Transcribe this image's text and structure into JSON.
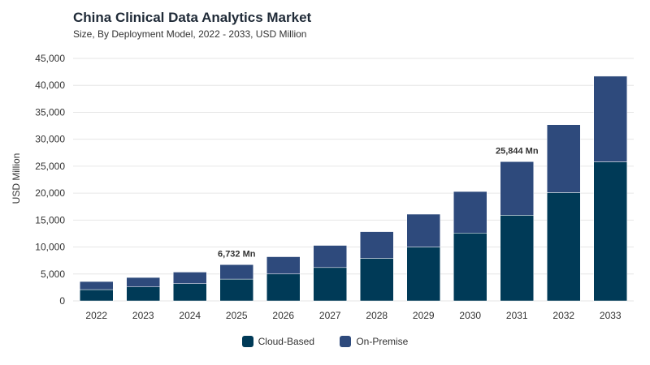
{
  "chart_data": {
    "type": "bar",
    "stacked": true,
    "title": "China Clinical Data Analytics Market",
    "subtitle": "Size, By Deployment Model, 2022 - 2033, USD Million",
    "ylabel": "USD Million",
    "xlabel": "",
    "ylim": [
      0,
      45000
    ],
    "yticks": [
      0,
      5000,
      10000,
      15000,
      20000,
      25000,
      30000,
      35000,
      40000,
      45000
    ],
    "ytick_labels": [
      "0",
      "5,000",
      "10,000",
      "15,000",
      "20,000",
      "25,000",
      "30,000",
      "35,000",
      "40,000",
      "45,000"
    ],
    "grid": true,
    "legend_position": "bottom-center",
    "categories": [
      "2022",
      "2023",
      "2024",
      "2025",
      "2026",
      "2027",
      "2028",
      "2029",
      "2030",
      "2031",
      "2032",
      "2033"
    ],
    "series": [
      {
        "name": "Cloud-Based",
        "color": "#003a57",
        "values": [
          2100,
          2600,
          3200,
          4050,
          5000,
          6200,
          7900,
          10000,
          12600,
          15900,
          20100,
          25800
        ]
      },
      {
        "name": "On-Premise",
        "color": "#2e4a7c",
        "values": [
          1500,
          1750,
          2150,
          2682,
          3200,
          4100,
          4950,
          6100,
          7700,
          9944,
          12600,
          15900
        ]
      }
    ],
    "annotations": [
      {
        "category": "2025",
        "text": "6,732 Mn"
      },
      {
        "category": "2031",
        "text": "25,844 Mn"
      }
    ]
  }
}
